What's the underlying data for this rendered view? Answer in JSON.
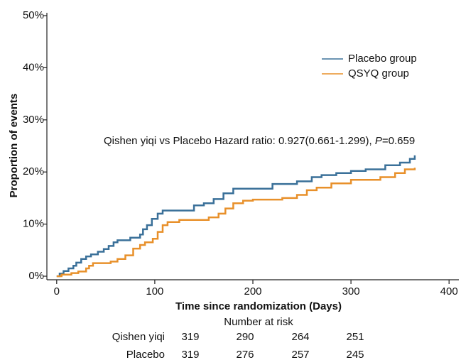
{
  "chart_data": {
    "type": "step",
    "y_label": "Proportion of events",
    "x_label": "Time since randomization (Days)",
    "annotation": {
      "text": "Qishen yiqi vs Placebo Hazard ratio: 0.927(0.661-1.299), ",
      "p_label": "P",
      "p_value": "=0.659"
    },
    "xlim": [
      -10,
      410
    ],
    "xticks": [
      0,
      100,
      200,
      300,
      400
    ],
    "ylim": [
      0,
      50
    ],
    "yticks": [
      {
        "value": 0,
        "label": "0%"
      },
      {
        "value": 10,
        "label": "10%"
      },
      {
        "value": 20,
        "label": "20%"
      },
      {
        "value": 30,
        "label": "30%"
      },
      {
        "value": 40,
        "label": "40%"
      },
      {
        "value": 50,
        "label": "50%"
      }
    ],
    "series": [
      {
        "name": "Placebo group",
        "color": "#3a7099",
        "x": [
          0,
          3,
          7,
          12,
          17,
          20,
          25,
          30,
          35,
          42,
          48,
          53,
          58,
          62,
          75,
          85,
          88,
          92,
          97,
          103,
          108,
          140,
          150,
          160,
          170,
          180,
          220,
          245,
          260,
          270,
          285,
          300,
          315,
          335,
          350,
          360,
          365
        ],
        "values": [
          0,
          0.5,
          1.0,
          1.5,
          2.0,
          2.6,
          3.3,
          3.8,
          4.2,
          4.7,
          5.2,
          5.8,
          6.5,
          6.9,
          7.4,
          8.0,
          9.0,
          9.8,
          11.0,
          12.0,
          12.6,
          13.6,
          14.0,
          14.8,
          15.9,
          16.8,
          17.7,
          18.2,
          19.0,
          19.4,
          19.8,
          20.2,
          20.5,
          21.3,
          21.8,
          22.5,
          23.2
        ]
      },
      {
        "name": "QSYQ group",
        "color": "#e8902a",
        "x": [
          0,
          5,
          15,
          22,
          30,
          33,
          37,
          55,
          62,
          70,
          78,
          85,
          90,
          98,
          103,
          108,
          113,
          125,
          155,
          165,
          172,
          180,
          190,
          200,
          230,
          245,
          255,
          265,
          280,
          300,
          330,
          345,
          355,
          365
        ],
        "values": [
          0,
          0.3,
          0.6,
          0.9,
          1.5,
          2.0,
          2.5,
          2.8,
          3.3,
          4.0,
          5.3,
          6.0,
          6.5,
          7.2,
          8.5,
          9.8,
          10.4,
          10.8,
          11.3,
          12.0,
          13.0,
          14.0,
          14.5,
          14.7,
          15.0,
          15.6,
          16.5,
          17.0,
          17.8,
          18.5,
          19.0,
          19.8,
          20.5,
          20.8
        ]
      }
    ],
    "risk_table": {
      "title": "Number at risk",
      "rows": [
        {
          "label": "Qishen yiqi",
          "values": [
            "319",
            "290",
            "264",
            "251"
          ]
        },
        {
          "label": "Placebo",
          "values": [
            "319",
            "276",
            "257",
            "245"
          ]
        }
      ]
    }
  }
}
